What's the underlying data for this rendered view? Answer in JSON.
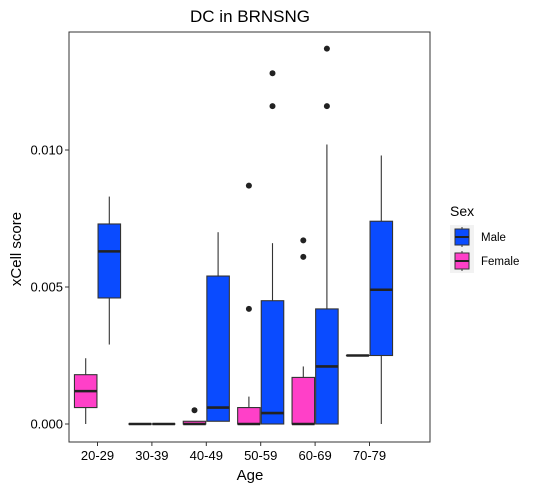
{
  "chart_data": {
    "type": "boxplot",
    "title": "DC in BRNSNG",
    "xlabel": "Age",
    "ylabel": "xCell score",
    "categories": [
      "20-29",
      "30-39",
      "40-49",
      "50-59",
      "60-69",
      "70-79"
    ],
    "ylim": [
      -0.0005,
      0.0142
    ],
    "yticks": [
      0.0,
      0.005,
      0.01
    ],
    "ytick_labels": [
      "0.000",
      "0.005",
      "0.010"
    ],
    "legend": {
      "title": "Sex",
      "position": "right"
    },
    "series": [
      {
        "name": "Male",
        "color": "#0A4BFF",
        "boxes": [
          {
            "category": "20-29",
            "min": 0.0029,
            "q1": 0.0046,
            "median": 0.0063,
            "q3": 0.0073,
            "max": 0.0083,
            "outliers": []
          },
          {
            "category": "30-39",
            "min": 0.0,
            "q1": 0.0,
            "median": 0.0,
            "q3": 0.0,
            "max": 0.0,
            "outliers": []
          },
          {
            "category": "40-49",
            "min": 0.0001,
            "q1": 0.0001,
            "median": 0.0006,
            "q3": 0.0054,
            "max": 0.007,
            "outliers": []
          },
          {
            "category": "50-59",
            "min": 0.0,
            "q1": 0.0,
            "median": 0.0004,
            "q3": 0.0045,
            "max": 0.0066,
            "outliers": [
              0.0116,
              0.0128
            ]
          },
          {
            "category": "60-69",
            "min": 0.0,
            "q1": 0.0,
            "median": 0.0021,
            "q3": 0.0042,
            "max": 0.0102,
            "outliers": [
              0.0116,
              0.0137
            ]
          },
          {
            "category": "70-79",
            "min": 0.0,
            "q1": 0.0025,
            "median": 0.0049,
            "q3": 0.0074,
            "max": 0.0098,
            "outliers": []
          }
        ]
      },
      {
        "name": "Female",
        "color": "#FF40C8",
        "boxes": [
          {
            "category": "20-29",
            "min": 0.0,
            "q1": 0.0006,
            "median": 0.0012,
            "q3": 0.0018,
            "max": 0.0024,
            "outliers": []
          },
          {
            "category": "30-39",
            "min": 0.0,
            "q1": 0.0,
            "median": 0.0,
            "q3": 0.0,
            "max": 0.0,
            "outliers": []
          },
          {
            "category": "40-49",
            "min": 0.0,
            "q1": 0.0,
            "median": 0.0,
            "q3": 0.0001,
            "max": 0.0001,
            "outliers": [
              0.0005
            ]
          },
          {
            "category": "50-59",
            "min": 0.0,
            "q1": 0.0,
            "median": 0.0,
            "q3": 0.0006,
            "max": 0.001,
            "outliers": [
              0.0042,
              0.0087
            ]
          },
          {
            "category": "60-69",
            "min": 0.0,
            "q1": 0.0,
            "median": 0.0,
            "q3": 0.0017,
            "max": 0.0021,
            "outliers": [
              0.0061,
              0.0067
            ]
          },
          {
            "category": "70-79",
            "min": 0.0025,
            "q1": 0.0025,
            "median": 0.0025,
            "q3": 0.0025,
            "max": 0.0025,
            "outliers": []
          }
        ]
      }
    ]
  }
}
